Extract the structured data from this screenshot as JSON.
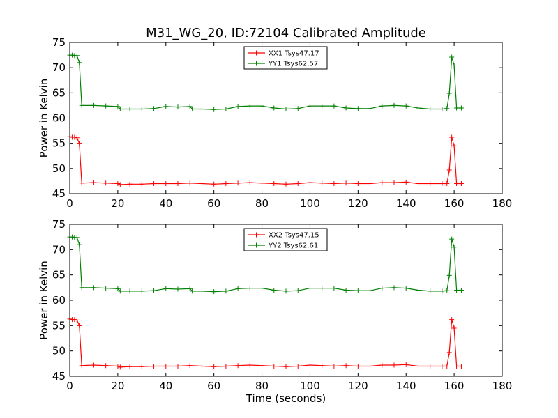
{
  "figure": {
    "title": "M31_WG_20, ID:72104 Calibrated Amplitude",
    "xlabel": "Time (seconds)",
    "background": "#ffffff"
  },
  "chart_data": [
    {
      "type": "line",
      "ylabel": "Power in Kelvin",
      "xlabel": "",
      "xlim": [
        0,
        180
      ],
      "ylim": [
        45,
        75
      ],
      "xticks": [
        "0",
        "20",
        "40",
        "60",
        "80",
        "100",
        "120",
        "140",
        "160",
        "180"
      ],
      "yticks": [
        "45",
        "50",
        "55",
        "60",
        "65",
        "70",
        "75"
      ],
      "grid": false,
      "legend_position": "top-center",
      "series": [
        {
          "name": "XX1 Tsys47.17",
          "color": "#ff0000",
          "marker": "plus",
          "x": [
            0,
            1,
            2,
            3,
            4,
            5,
            10,
            15,
            20,
            21,
            25,
            30,
            35,
            40,
            45,
            50,
            55,
            60,
            65,
            70,
            75,
            80,
            85,
            90,
            95,
            100,
            105,
            110,
            115,
            120,
            125,
            130,
            135,
            140,
            145,
            150,
            155,
            157,
            158,
            159,
            160,
            161,
            163
          ],
          "y": [
            56.3,
            56.2,
            56.2,
            56.1,
            55,
            47.1,
            47.2,
            47.1,
            47.0,
            46.8,
            46.9,
            46.9,
            47.0,
            47.0,
            47.0,
            47.1,
            47.0,
            46.9,
            47.0,
            47.1,
            47.2,
            47.1,
            47.0,
            46.9,
            47.0,
            47.2,
            47.1,
            47.0,
            47.1,
            47.0,
            47.0,
            47.2,
            47.2,
            47.3,
            47.0,
            47.0,
            47.0,
            47.0,
            49.7,
            56.2,
            54.5,
            47.0,
            47.0
          ]
        },
        {
          "name": "YY1 Tsys62.57",
          "color": "#008000",
          "marker": "plus",
          "x": [
            0,
            1,
            2,
            3,
            4,
            5,
            10,
            15,
            20,
            21,
            25,
            30,
            35,
            40,
            45,
            50,
            51,
            55,
            60,
            65,
            70,
            75,
            80,
            85,
            90,
            95,
            100,
            105,
            110,
            115,
            120,
            125,
            130,
            135,
            140,
            145,
            150,
            155,
            157,
            158,
            159,
            160,
            161,
            163
          ],
          "y": [
            72.5,
            72.5,
            72.4,
            72.4,
            71.0,
            62.5,
            62.5,
            62.4,
            62.3,
            61.8,
            61.8,
            61.8,
            61.9,
            62.3,
            62.2,
            62.3,
            61.8,
            61.8,
            61.7,
            61.8,
            62.3,
            62.4,
            62.4,
            62.0,
            61.8,
            61.9,
            62.4,
            62.4,
            62.4,
            62.0,
            61.9,
            61.9,
            62.4,
            62.5,
            62.4,
            62.0,
            61.8,
            61.8,
            61.9,
            64.9,
            72.1,
            70.5,
            62.0,
            62.0
          ]
        }
      ]
    },
    {
      "type": "line",
      "ylabel": "Power in Kelvin",
      "xlabel": "Time (seconds)",
      "xlim": [
        0,
        180
      ],
      "ylim": [
        45,
        75
      ],
      "xticks": [
        "0",
        "20",
        "40",
        "60",
        "80",
        "100",
        "120",
        "140",
        "160",
        "180"
      ],
      "yticks": [
        "45",
        "50",
        "55",
        "60",
        "65",
        "70",
        "75"
      ],
      "grid": false,
      "legend_position": "top-center",
      "series": [
        {
          "name": "XX2 Tsys47.15",
          "color": "#ff0000",
          "marker": "plus",
          "x": [
            0,
            1,
            2,
            3,
            4,
            5,
            10,
            15,
            20,
            21,
            25,
            30,
            35,
            40,
            45,
            50,
            55,
            60,
            65,
            70,
            75,
            80,
            85,
            90,
            95,
            100,
            105,
            110,
            115,
            120,
            125,
            130,
            135,
            140,
            145,
            150,
            155,
            157,
            158,
            159,
            160,
            161,
            163
          ],
          "y": [
            56.3,
            56.2,
            56.2,
            56.1,
            55,
            47.1,
            47.2,
            47.1,
            47.0,
            46.8,
            46.9,
            46.9,
            47.0,
            47.0,
            47.0,
            47.1,
            47.0,
            46.9,
            47.0,
            47.1,
            47.2,
            47.1,
            47.0,
            46.9,
            47.0,
            47.2,
            47.1,
            47.0,
            47.1,
            47.0,
            47.0,
            47.2,
            47.2,
            47.3,
            47.0,
            47.0,
            47.0,
            47.0,
            49.7,
            56.2,
            54.5,
            47.0,
            47.0
          ]
        },
        {
          "name": "YY2 Tsys62.61",
          "color": "#008000",
          "marker": "plus",
          "x": [
            0,
            1,
            2,
            3,
            4,
            5,
            10,
            15,
            20,
            21,
            25,
            30,
            35,
            40,
            45,
            50,
            51,
            55,
            60,
            65,
            70,
            75,
            80,
            85,
            90,
            95,
            100,
            105,
            110,
            115,
            120,
            125,
            130,
            135,
            140,
            145,
            150,
            155,
            157,
            158,
            159,
            160,
            161,
            163
          ],
          "y": [
            72.5,
            72.5,
            72.4,
            72.4,
            71.0,
            62.5,
            62.5,
            62.4,
            62.3,
            61.8,
            61.8,
            61.8,
            61.9,
            62.3,
            62.2,
            62.3,
            61.8,
            61.8,
            61.7,
            61.8,
            62.3,
            62.4,
            62.4,
            62.0,
            61.8,
            61.9,
            62.4,
            62.4,
            62.4,
            62.0,
            61.9,
            61.9,
            62.4,
            62.5,
            62.4,
            62.0,
            61.8,
            61.8,
            61.9,
            64.9,
            72.1,
            70.5,
            62.0,
            62.0
          ]
        }
      ]
    }
  ]
}
